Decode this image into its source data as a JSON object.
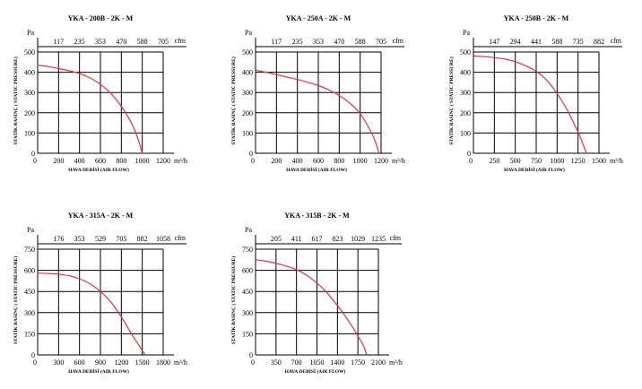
{
  "chart_data": [
    {
      "type": "line",
      "title": "YKA - 200B - 2K - M",
      "xlabel": "HAVA DEBİSİ (AIR FLOW)",
      "ylabel": "STATİK BASINÇ ( STATIC PRESSURE)",
      "y_unit": "Pa",
      "x_unit": "m³/h",
      "cfm_unit": "cfm",
      "xlim": [
        0,
        1200
      ],
      "ylim": [
        0,
        500
      ],
      "x_ticks": [
        "0",
        "200",
        "400",
        "600",
        "800",
        "1000",
        "1200"
      ],
      "y_ticks": [
        "0",
        "100",
        "200",
        "300",
        "400",
        "500"
      ],
      "cfm_ticks": [
        "117",
        "235",
        "353",
        "470",
        "588",
        "705"
      ],
      "series": [
        {
          "x": [
            0,
            100,
            200,
            300,
            400,
            500,
            600,
            700,
            800,
            900,
            960,
            1000
          ],
          "y": [
            435,
            428,
            418,
            408,
            394,
            372,
            340,
            295,
            232,
            145,
            70,
            0
          ]
        }
      ]
    },
    {
      "type": "line",
      "title": "YKA - 250A - 2K - M",
      "xlabel": "HAVA DEBİSİ (AIR FLOW)",
      "ylabel": "STATİK BASINÇ ( STATIC PRESSURE)",
      "y_unit": "Pa",
      "x_unit": "m³/h",
      "cfm_unit": "cfm",
      "xlim": [
        0,
        1200
      ],
      "ylim": [
        0,
        500
      ],
      "x_ticks": [
        "0",
        "200",
        "400",
        "600",
        "800",
        "1000",
        "1200"
      ],
      "y_ticks": [
        "0",
        "100",
        "200",
        "300",
        "400",
        "500"
      ],
      "cfm_ticks": [
        "117",
        "235",
        "353",
        "470",
        "588",
        "705"
      ],
      "series": [
        {
          "x": [
            0,
            100,
            200,
            300,
            400,
            500,
            600,
            700,
            800,
            900,
            1000,
            1100,
            1150,
            1180
          ],
          "y": [
            410,
            400,
            388,
            376,
            364,
            350,
            334,
            313,
            285,
            248,
            195,
            110,
            50,
            0
          ]
        }
      ]
    },
    {
      "type": "line",
      "title": "YKA - 250B - 2K - M",
      "xlabel": "HAVA DEBİSİ (AIR FLOW)",
      "ylabel": "STATİK BASINÇ ( STATIC PRESSURE)",
      "y_unit": "Pa",
      "x_unit": "m³/h",
      "cfm_unit": "cfm",
      "xlim": [
        0,
        1500
      ],
      "ylim": [
        0,
        500
      ],
      "x_ticks": [
        "0",
        "250",
        "500",
        "750",
        "1000",
        "1250",
        "1500"
      ],
      "y_ticks": [
        "0",
        "100",
        "200",
        "300",
        "400",
        "500"
      ],
      "cfm_ticks": [
        "147",
        "294",
        "441",
        "588",
        "735",
        "882"
      ],
      "series": [
        {
          "x": [
            0,
            125,
            250,
            375,
            500,
            625,
            750,
            875,
            1000,
            1125,
            1250,
            1300,
            1350
          ],
          "y": [
            480,
            477,
            472,
            465,
            452,
            432,
            405,
            360,
            295,
            210,
            105,
            55,
            0
          ]
        }
      ]
    },
    {
      "type": "line",
      "title": "YKA - 315A - 2K - M",
      "xlabel": "HAVA DEBİSİ (AIR FLOW)",
      "ylabel": "STATİK BASINÇ ( STATIC PRESSURE)",
      "y_unit": "Pa",
      "x_unit": "m³/h",
      "cfm_unit": "cfm",
      "xlim": [
        0,
        1800
      ],
      "ylim": [
        0,
        750
      ],
      "x_ticks": [
        "0",
        "300",
        "600",
        "900",
        "1200",
        "1500",
        "1800"
      ],
      "y_ticks": [
        "0",
        "150",
        "300",
        "450",
        "600",
        "750"
      ],
      "cfm_ticks": [
        "176",
        "353",
        "529",
        "705",
        "882",
        "1058"
      ],
      "series": [
        {
          "x": [
            0,
            150,
            300,
            450,
            600,
            750,
            900,
            1050,
            1200,
            1350,
            1450,
            1540
          ],
          "y": [
            580,
            578,
            572,
            562,
            540,
            505,
            450,
            375,
            270,
            145,
            70,
            0
          ]
        }
      ]
    },
    {
      "type": "line",
      "title": "YKA - 315B - 2K - M",
      "xlabel": "HAVA DEBİSİ (AIR FLOW)",
      "ylabel": "STATİK BASINÇ ( STATIC PRESSURE)",
      "y_unit": "Pa",
      "x_unit": "m³/h",
      "cfm_unit": "cfm",
      "xlim": [
        0,
        2100
      ],
      "ylim": [
        0,
        750
      ],
      "x_ticks": [
        "0",
        "350",
        "700",
        "1050",
        "1400",
        "1750",
        "2100"
      ],
      "y_ticks": [
        "0",
        "150",
        "300",
        "450",
        "600",
        "750"
      ],
      "cfm_ticks": [
        "205",
        "411",
        "617",
        "823",
        "1029",
        "1235"
      ],
      "series": [
        {
          "x": [
            0,
            175,
            350,
            525,
            700,
            875,
            1050,
            1225,
            1400,
            1575,
            1750,
            1850,
            1900
          ],
          "y": [
            675,
            665,
            650,
            630,
            605,
            565,
            510,
            440,
            350,
            250,
            135,
            60,
            0
          ]
        }
      ]
    }
  ]
}
